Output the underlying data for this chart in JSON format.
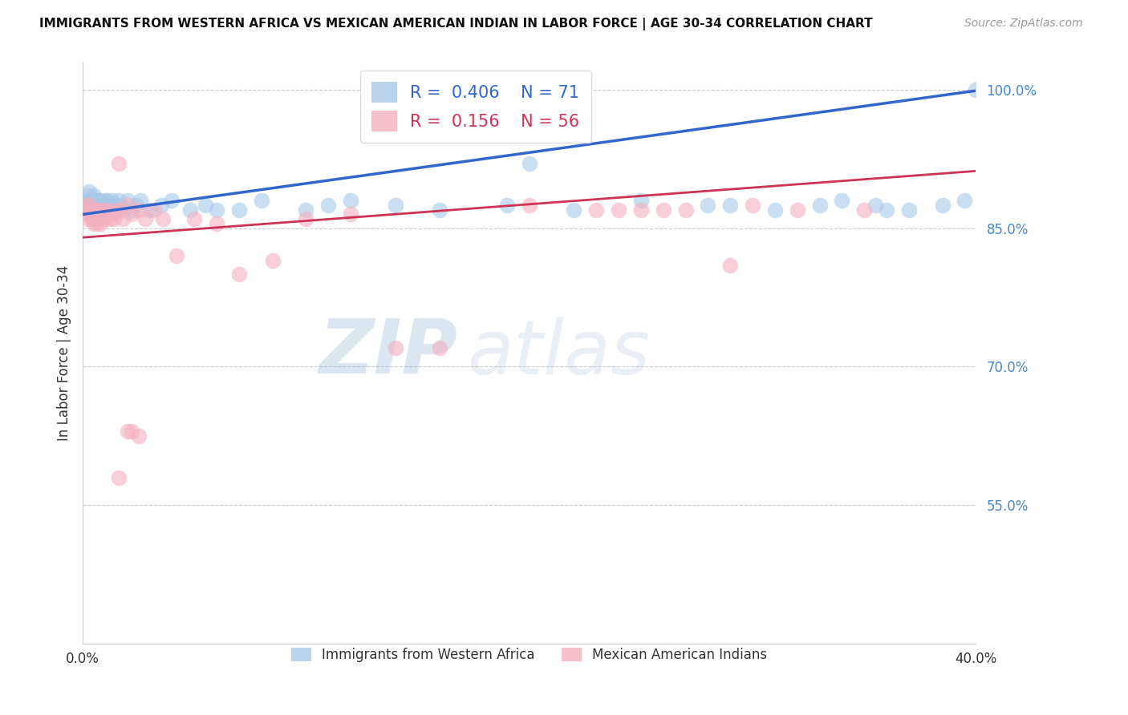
{
  "title": "IMMIGRANTS FROM WESTERN AFRICA VS MEXICAN AMERICAN INDIAN IN LABOR FORCE | AGE 30-34 CORRELATION CHART",
  "source": "Source: ZipAtlas.com",
  "ylabel": "In Labor Force | Age 30-34",
  "xlim": [
    0.0,
    0.4
  ],
  "ylim": [
    0.4,
    1.03
  ],
  "yticks": [
    0.55,
    0.7,
    0.85,
    1.0
  ],
  "ytick_labels": [
    "55.0%",
    "70.0%",
    "85.0%",
    "100.0%"
  ],
  "legend_blue_r": "0.406",
  "legend_blue_n": "71",
  "legend_pink_r": "0.156",
  "legend_pink_n": "56",
  "blue_color": "#a8c8e8",
  "pink_color": "#f4b0c0",
  "line_blue_color": "#3366cc",
  "line_pink_color": "#cc3355",
  "watermark_zip": "ZIP",
  "watermark_atlas": "atlas",
  "blue_points_x": [
    0.001,
    0.002,
    0.002,
    0.003,
    0.003,
    0.003,
    0.004,
    0.004,
    0.004,
    0.005,
    0.005,
    0.005,
    0.005,
    0.006,
    0.006,
    0.006,
    0.006,
    0.007,
    0.007,
    0.007,
    0.008,
    0.008,
    0.008,
    0.009,
    0.009,
    0.01,
    0.01,
    0.01,
    0.011,
    0.011,
    0.012,
    0.012,
    0.013,
    0.013,
    0.014,
    0.015,
    0.016,
    0.017,
    0.018,
    0.02,
    0.022,
    0.024,
    0.026,
    0.03,
    0.035,
    0.04,
    0.048,
    0.055,
    0.06,
    0.07,
    0.08,
    0.1,
    0.11,
    0.12,
    0.14,
    0.16,
    0.19,
    0.2,
    0.22,
    0.25,
    0.29,
    0.31,
    0.33,
    0.34,
    0.355,
    0.37,
    0.385,
    0.395,
    0.4,
    0.36,
    0.28
  ],
  "blue_points_y": [
    0.88,
    0.875,
    0.885,
    0.87,
    0.88,
    0.89,
    0.875,
    0.865,
    0.88,
    0.87,
    0.88,
    0.875,
    0.885,
    0.87,
    0.875,
    0.865,
    0.88,
    0.87,
    0.88,
    0.875,
    0.87,
    0.88,
    0.865,
    0.875,
    0.87,
    0.88,
    0.87,
    0.875,
    0.865,
    0.88,
    0.87,
    0.875,
    0.88,
    0.87,
    0.875,
    0.87,
    0.88,
    0.875,
    0.87,
    0.88,
    0.87,
    0.875,
    0.88,
    0.87,
    0.875,
    0.88,
    0.87,
    0.875,
    0.87,
    0.87,
    0.88,
    0.87,
    0.875,
    0.88,
    0.875,
    0.87,
    0.875,
    0.92,
    0.87,
    0.88,
    0.875,
    0.87,
    0.875,
    0.88,
    0.875,
    0.87,
    0.875,
    0.88,
    1.0,
    0.87,
    0.875
  ],
  "pink_points_x": [
    0.001,
    0.002,
    0.002,
    0.003,
    0.003,
    0.004,
    0.004,
    0.005,
    0.005,
    0.005,
    0.006,
    0.006,
    0.007,
    0.007,
    0.008,
    0.008,
    0.009,
    0.01,
    0.01,
    0.011,
    0.012,
    0.013,
    0.014,
    0.015,
    0.016,
    0.017,
    0.018,
    0.02,
    0.022,
    0.025,
    0.028,
    0.032,
    0.036,
    0.042,
    0.05,
    0.06,
    0.07,
    0.085,
    0.1,
    0.12,
    0.14,
    0.16,
    0.2,
    0.23,
    0.26,
    0.29,
    0.016,
    0.02,
    0.022,
    0.025,
    0.24,
    0.25,
    0.27,
    0.3,
    0.32,
    0.35
  ],
  "pink_points_y": [
    0.87,
    0.875,
    0.86,
    0.865,
    0.875,
    0.86,
    0.87,
    0.855,
    0.87,
    0.865,
    0.855,
    0.87,
    0.86,
    0.87,
    0.865,
    0.855,
    0.86,
    0.87,
    0.86,
    0.87,
    0.86,
    0.865,
    0.86,
    0.87,
    0.92,
    0.87,
    0.86,
    0.875,
    0.865,
    0.87,
    0.86,
    0.87,
    0.86,
    0.82,
    0.86,
    0.855,
    0.8,
    0.815,
    0.86,
    0.865,
    0.72,
    0.72,
    0.875,
    0.87,
    0.87,
    0.81,
    0.58,
    0.63,
    0.63,
    0.625,
    0.87,
    0.87,
    0.87,
    0.875,
    0.87,
    0.87
  ]
}
